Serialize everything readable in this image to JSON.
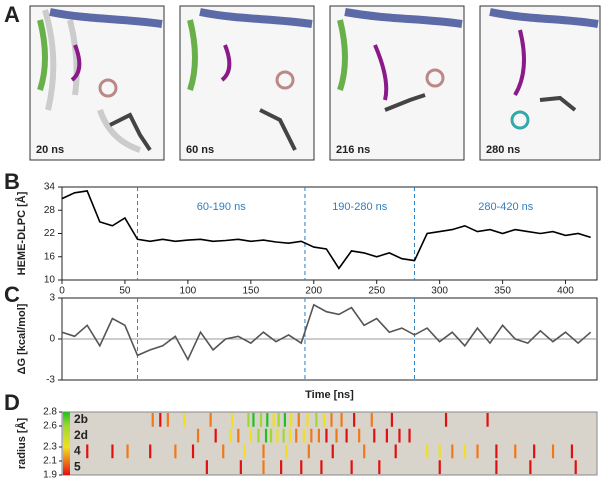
{
  "panel_labels": [
    "A",
    "B",
    "C",
    "D"
  ],
  "snapshots": [
    "20 ns",
    "60 ns",
    "216 ns",
    "280 ns"
  ],
  "chart_data": [
    {
      "type": "line",
      "ylabel": "HEME-DLPC [Å]",
      "x": [
        0,
        10,
        20,
        30,
        40,
        50,
        60,
        70,
        80,
        90,
        100,
        110,
        120,
        130,
        140,
        150,
        160,
        170,
        180,
        190,
        200,
        210,
        220,
        230,
        240,
        250,
        260,
        270,
        280,
        290,
        300,
        310,
        320,
        330,
        340,
        350,
        360,
        370,
        380,
        390,
        400,
        410,
        420
      ],
      "series": [
        {
          "color": "#000000",
          "values": [
            31,
            32.5,
            33,
            25,
            24,
            26,
            20.5,
            20,
            20.5,
            20,
            20.3,
            20.5,
            20,
            20.2,
            20.5,
            20,
            20.3,
            19.8,
            19.5,
            20,
            18.5,
            18,
            13,
            17.5,
            17,
            16,
            17,
            15.5,
            15,
            22,
            22.5,
            23,
            24,
            22.5,
            23,
            22,
            23,
            22.5,
            22,
            22.5,
            21.5,
            22,
            21
          ]
        }
      ],
      "xlim": [
        0,
        425
      ],
      "ylim": [
        10,
        34
      ],
      "xticks": [
        0,
        50,
        100,
        150,
        200,
        250,
        300,
        350,
        400
      ],
      "yticks": [
        10,
        16,
        22,
        28,
        34
      ],
      "dividers": [
        60,
        193,
        280
      ],
      "annotations": [
        "60-190 ns",
        "190-280 ns",
        "280-420 ns"
      ]
    },
    {
      "type": "line",
      "ylabel": "ΔG [kcal/mol]",
      "xlabel": "Time [ns]",
      "x": [
        0,
        10,
        20,
        30,
        40,
        50,
        60,
        70,
        80,
        90,
        100,
        110,
        120,
        130,
        140,
        150,
        160,
        170,
        180,
        190,
        200,
        210,
        220,
        230,
        240,
        250,
        260,
        270,
        280,
        290,
        300,
        310,
        320,
        330,
        340,
        350,
        360,
        370,
        380,
        390,
        400,
        410,
        420
      ],
      "series": [
        {
          "color": "#555555",
          "values": [
            0.5,
            0.2,
            1,
            -0.5,
            1.5,
            1,
            -1.2,
            -0.8,
            -0.5,
            0.2,
            -1.5,
            0.5,
            -0.8,
            0,
            0.2,
            -0.3,
            0.5,
            -0.2,
            0.3,
            -0.3,
            2.5,
            2,
            1.8,
            2.3,
            1,
            1.5,
            0.5,
            0.8,
            0.3,
            0.8,
            -0.2,
            0.5,
            -0.5,
            0.8,
            -0.3,
            1,
            0,
            -0.3,
            0.6,
            -0.2,
            0.5,
            -0.3,
            0.5
          ]
        }
      ],
      "xlim": [
        0,
        425
      ],
      "ylim": [
        -3,
        3
      ],
      "yticks": [
        -3,
        0,
        3
      ],
      "dividers": [
        60,
        193,
        280
      ]
    },
    {
      "type": "events",
      "ylabel": "radius [Å]",
      "rows": [
        "2b",
        "2d",
        "4",
        "5"
      ],
      "events": [
        {
          "times": [
            72,
            78,
            84,
            97,
            118,
            135,
            148,
            152,
            158,
            163,
            168,
            172,
            177,
            182,
            188,
            195,
            202,
            208,
            214,
            222,
            232,
            246,
            262,
            305,
            338
          ],
          "radii": [
            2.1,
            1.9,
            2.1,
            2.3,
            2.1,
            2.3,
            2.6,
            2.8,
            2.6,
            2.8,
            2.3,
            2.6,
            2.8,
            2.3,
            2.1,
            2.3,
            2.6,
            2.3,
            2.1,
            2.1,
            1.9,
            2.1,
            1.9,
            1.9,
            1.9
          ]
        },
        {
          "times": [
            108,
            122,
            134,
            140,
            150,
            156,
            162,
            166,
            171,
            176,
            181,
            186,
            192,
            198,
            204,
            210,
            218,
            226,
            236,
            248,
            258,
            268,
            276
          ],
          "radii": [
            2.1,
            1.9,
            2.3,
            2.1,
            2.3,
            2.6,
            2.8,
            2.6,
            2.3,
            2.6,
            2.3,
            2.1,
            2.3,
            2.1,
            2.1,
            1.9,
            2.1,
            1.9,
            2.1,
            1.9,
            1.9,
            1.9,
            1.9
          ]
        },
        {
          "times": [
            20,
            40,
            52,
            70,
            90,
            104,
            128,
            145,
            160,
            178,
            196,
            215,
            240,
            265,
            290,
            300,
            310,
            320,
            330,
            345,
            360,
            375,
            390,
            405
          ],
          "radii": [
            1.9,
            1.9,
            2.1,
            1.9,
            2.1,
            1.9,
            2.1,
            2.3,
            2.1,
            2.3,
            2.1,
            1.9,
            2.1,
            1.9,
            2.3,
            2.3,
            2.1,
            2.3,
            2.1,
            1.9,
            2.1,
            1.9,
            2.1,
            1.9
          ]
        },
        {
          "times": [
            115,
            142,
            160,
            174,
            190,
            206,
            230,
            252,
            300,
            345,
            372,
            408
          ],
          "radii": [
            1.9,
            1.9,
            2.1,
            1.9,
            1.9,
            1.9,
            1.9,
            1.9,
            1.9,
            1.9,
            1.9,
            1.9
          ]
        }
      ],
      "colorscale": [
        {
          "value": 1.9,
          "color": "#e01010"
        },
        {
          "value": 2.1,
          "color": "#f07818"
        },
        {
          "value": 2.3,
          "color": "#f0e020"
        },
        {
          "value": 2.6,
          "color": "#a0d830"
        },
        {
          "value": 2.8,
          "color": "#20c020"
        }
      ],
      "colorbar_lim": [
        1.9,
        2.8
      ],
      "colorbar_ticks": [
        2.8,
        2.6,
        2.3,
        2.1,
        1.9
      ],
      "xlim": [
        0,
        425
      ]
    }
  ]
}
